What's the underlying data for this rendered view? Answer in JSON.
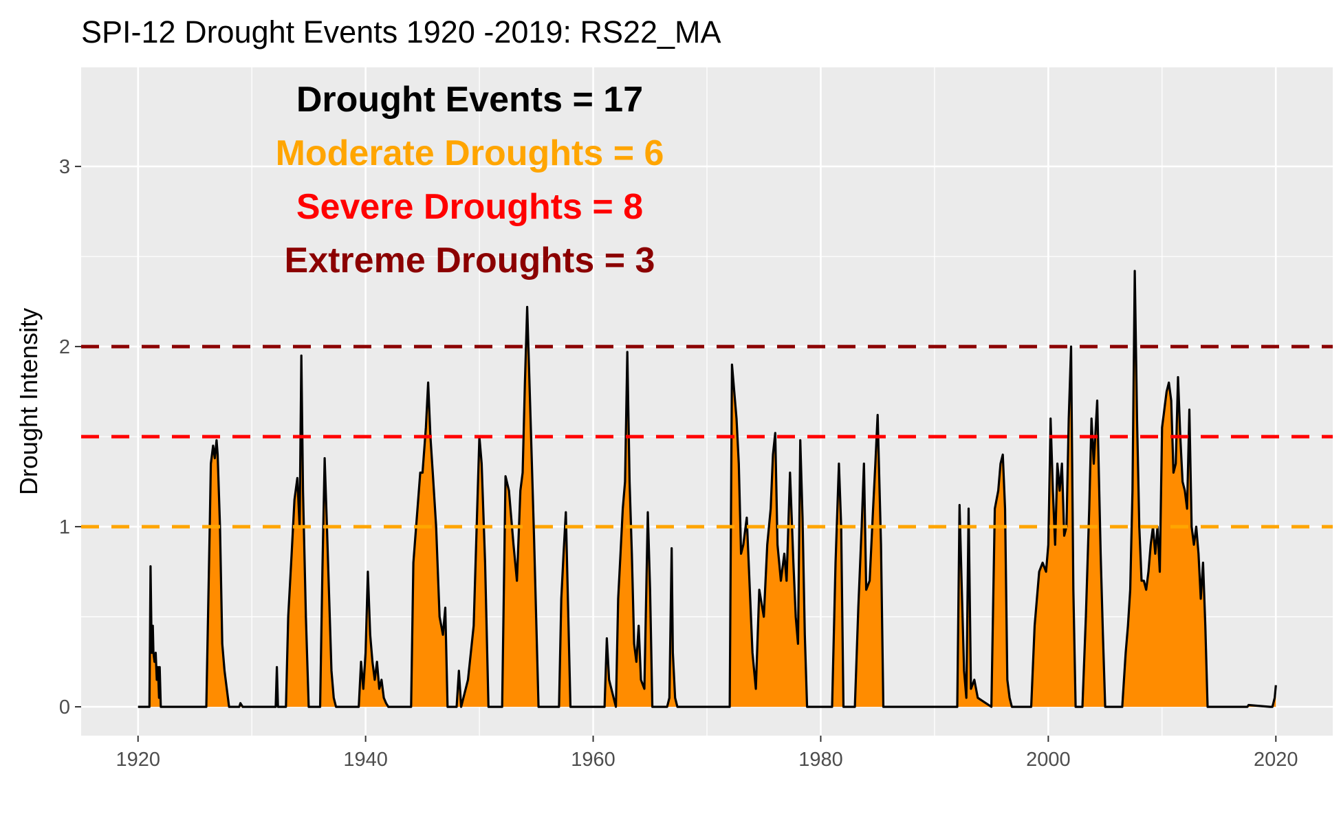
{
  "chart_data": {
    "type": "area",
    "title": "SPI-12 Drought Events 1920 -2019: RS22_MA",
    "xlabel": "",
    "ylabel": "Drought Intensity",
    "xlim": [
      1915,
      2025
    ],
    "ylim": [
      -0.16,
      3.55
    ],
    "x_ticks": [
      1920,
      1940,
      1960,
      1980,
      2000,
      2020
    ],
    "y_ticks": [
      0,
      1,
      2,
      3
    ],
    "grid": true,
    "fill_color": "#FF8C00",
    "line_color": "#000000",
    "panel_background": "#EBEBEB",
    "thresholds": [
      {
        "value": 1.0,
        "color": "#FFA500",
        "style": "dashed"
      },
      {
        "value": 1.5,
        "color": "#FF0000",
        "style": "dashed"
      },
      {
        "value": 2.0,
        "color": "#8B0000",
        "style": "dashed"
      }
    ],
    "annotations": [
      {
        "text": "Drought Events = 17",
        "color": "#000000"
      },
      {
        "text": "Moderate Droughts = 6",
        "color": "#FFA500"
      },
      {
        "text": "Severe Droughts = 8",
        "color": "#FF0000"
      },
      {
        "text": "Extreme Droughts = 3",
        "color": "#8B0000"
      }
    ],
    "series": [
      {
        "x": [
          1920.0,
          1921.0,
          1921.1,
          1921.2,
          1921.3,
          1921.35,
          1921.45,
          1921.55,
          1921.65,
          1921.75,
          1921.85,
          1921.9,
          1922.0,
          1926.0,
          1926.3,
          1926.4,
          1926.6,
          1926.75,
          1926.9,
          1927.0,
          1927.2,
          1927.4,
          1927.6,
          1927.8,
          1928.0,
          1928.9,
          1929.0,
          1929.2,
          1932.1,
          1932.2,
          1932.3,
          1933.0,
          1933.2,
          1933.5,
          1933.75,
          1934.0,
          1934.2,
          1934.35,
          1934.5,
          1934.75,
          1935.0,
          1936.0,
          1936.2,
          1936.4,
          1936.6,
          1936.8,
          1937.0,
          1937.2,
          1937.4,
          1939.4,
          1939.6,
          1939.8,
          1940.0,
          1940.2,
          1940.4,
          1940.6,
          1940.8,
          1941.0,
          1941.2,
          1941.4,
          1941.6,
          1941.8,
          1942.0,
          1944.0,
          1944.2,
          1944.5,
          1944.8,
          1945.0,
          1945.3,
          1945.5,
          1945.7,
          1945.9,
          1946.2,
          1946.5,
          1946.8,
          1947.0,
          1947.2,
          1948.0,
          1948.2,
          1948.4,
          1949.0,
          1949.5,
          1950.0,
          1950.2,
          1950.5,
          1950.8,
          1952.0,
          1952.3,
          1952.6,
          1953.0,
          1953.3,
          1953.6,
          1953.8,
          1954.0,
          1954.2,
          1954.5,
          1954.8,
          1955.2,
          1957.0,
          1957.2,
          1957.4,
          1957.6,
          1957.8,
          1958.0,
          1961.0,
          1961.2,
          1961.4,
          1961.6,
          1961.8,
          1962.0,
          1962.2,
          1962.4,
          1962.6,
          1962.8,
          1963.0,
          1963.2,
          1963.4,
          1963.6,
          1963.8,
          1964.0,
          1964.2,
          1964.5,
          1964.8,
          1965.0,
          1965.2,
          1966.5,
          1966.7,
          1966.9,
          1967.0,
          1967.2,
          1967.4,
          1972.0,
          1972.2,
          1972.4,
          1972.6,
          1972.8,
          1973.0,
          1973.2,
          1973.5,
          1973.8,
          1974.0,
          1974.3,
          1974.6,
          1975.0,
          1975.3,
          1975.6,
          1975.8,
          1976.0,
          1976.2,
          1976.5,
          1976.8,
          1977.0,
          1977.3,
          1977.6,
          1977.8,
          1978.0,
          1978.2,
          1978.4,
          1978.6,
          1978.8,
          1981.0,
          1981.3,
          1981.6,
          1981.8,
          1982.0,
          1983.0,
          1983.3,
          1983.6,
          1983.8,
          1984.0,
          1984.3,
          1984.6,
          1984.8,
          1985.0,
          1985.3,
          1985.5,
          1992.0,
          1992.2,
          1992.4,
          1992.6,
          1992.8,
          1993.0,
          1993.2,
          1993.5,
          1993.8,
          1995.0,
          1995.3,
          1995.6,
          1995.8,
          1996.0,
          1996.2,
          1996.4,
          1996.6,
          1996.8,
          1998.5,
          1998.8,
          1999.0,
          1999.2,
          1999.5,
          1999.8,
          2000.0,
          2000.2,
          2000.4,
          2000.6,
          2000.8,
          2001.0,
          2001.2,
          2001.4,
          2001.6,
          2001.8,
          2002.0,
          2002.2,
          2002.4,
          2003.0,
          2003.3,
          2003.6,
          2003.8,
          2004.0,
          2004.3,
          2004.6,
          2004.8,
          2005.0,
          2006.5,
          2006.8,
          2007.0,
          2007.2,
          2007.4,
          2007.6,
          2007.8,
          2008.0,
          2008.2,
          2008.4,
          2008.6,
          2008.8,
          2009.0,
          2009.2,
          2009.4,
          2009.6,
          2009.8,
          2010.0,
          2010.2,
          2010.4,
          2010.6,
          2010.8,
          2011.0,
          2011.2,
          2011.4,
          2011.6,
          2011.8,
          2012.0,
          2012.2,
          2012.4,
          2012.6,
          2012.8,
          2013.0,
          2013.2,
          2013.4,
          2013.6,
          2013.8,
          2014.0,
          2017.5,
          2017.6,
          2019.5,
          2019.7,
          2019.9,
          2020.0
        ],
        "y": [
          0,
          0,
          0.78,
          0.3,
          0.45,
          0.3,
          0.25,
          0.3,
          0.15,
          0.22,
          0.05,
          0.22,
          0,
          0,
          1.0,
          1.35,
          1.45,
          1.38,
          1.48,
          1.4,
          1.0,
          0.35,
          0.2,
          0.1,
          0,
          0,
          0.02,
          0,
          0,
          0.22,
          0,
          0,
          0.5,
          0.85,
          1.15,
          1.27,
          1.0,
          1.95,
          1.2,
          0.5,
          0,
          0,
          0.75,
          1.38,
          1.0,
          0.6,
          0.2,
          0.05,
          0,
          0,
          0.25,
          0.1,
          0.3,
          0.75,
          0.4,
          0.25,
          0.15,
          0.25,
          0.1,
          0.15,
          0.05,
          0.02,
          0,
          0,
          0.8,
          1.05,
          1.3,
          1.3,
          1.55,
          1.8,
          1.5,
          1.3,
          1.0,
          0.5,
          0.4,
          0.55,
          0,
          0,
          0.2,
          0,
          0.15,
          0.45,
          1.5,
          1.35,
          0.8,
          0,
          0,
          1.28,
          1.2,
          0.9,
          0.7,
          1.2,
          1.3,
          1.8,
          2.22,
          1.6,
          0.95,
          0,
          0,
          0.6,
          0.85,
          1.08,
          0.55,
          0,
          0,
          0.38,
          0.15,
          0.1,
          0.05,
          0,
          0.6,
          0.85,
          1.1,
          1.25,
          1.97,
          1.25,
          0.85,
          0.35,
          0.25,
          0.45,
          0.15,
          0.1,
          1.08,
          0.65,
          0,
          0,
          0.05,
          0.88,
          0.3,
          0.05,
          0,
          0,
          1.9,
          1.75,
          1.6,
          1.35,
          0.85,
          0.9,
          1.05,
          0.6,
          0.3,
          0.1,
          0.65,
          0.5,
          0.9,
          1.1,
          1.4,
          1.52,
          0.9,
          0.7,
          0.85,
          0.7,
          1.3,
          0.8,
          0.5,
          0.35,
          1.48,
          1.05,
          0.4,
          0,
          0,
          0.8,
          1.35,
          1.0,
          0,
          0,
          0.55,
          1.0,
          1.35,
          0.65,
          0.7,
          1.1,
          1.35,
          1.62,
          0.9,
          0,
          0,
          1.12,
          0.65,
          0.2,
          0.05,
          1.1,
          0.1,
          0.15,
          0.05,
          0,
          1.1,
          1.2,
          1.35,
          1.4,
          1.1,
          0.15,
          0.05,
          0,
          0,
          0.45,
          0.6,
          0.75,
          0.8,
          0.75,
          0.9,
          1.6,
          1.2,
          0.9,
          1.35,
          1.2,
          1.35,
          0.95,
          1.0,
          1.6,
          2.0,
          0.65,
          0,
          0,
          0.5,
          1.1,
          1.6,
          1.35,
          1.7,
          0.85,
          0.4,
          0,
          0,
          0.3,
          0.45,
          0.65,
          1.2,
          2.42,
          1.6,
          1.0,
          0.7,
          0.7,
          0.65,
          0.75,
          0.9,
          1.0,
          0.85,
          1.0,
          0.75,
          1.55,
          1.65,
          1.75,
          1.8,
          1.7,
          1.3,
          1.35,
          1.83,
          1.5,
          1.25,
          1.2,
          1.1,
          1.65,
          1.0,
          0.9,
          1.0,
          0.85,
          0.6,
          0.8,
          0.45,
          0,
          0,
          0.01,
          0,
          0,
          0.05,
          0.12
        ]
      }
    ]
  }
}
